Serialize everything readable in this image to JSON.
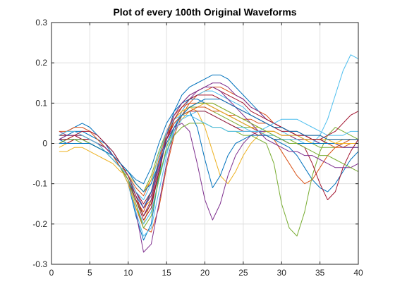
{
  "chart_data": {
    "type": "line",
    "title": "Plot of every 100th Original Waveforms",
    "xlabel": "",
    "ylabel": "",
    "xlim": [
      0,
      40
    ],
    "ylim": [
      -0.3,
      0.3
    ],
    "x_ticks": [
      0,
      5,
      10,
      15,
      20,
      25,
      30,
      35,
      40
    ],
    "y_ticks": [
      -0.3,
      -0.2,
      -0.1,
      0,
      0.1,
      0.2,
      0.3
    ],
    "grid": true,
    "x": [
      1,
      2,
      3,
      4,
      5,
      6,
      7,
      8,
      9,
      10,
      11,
      12,
      13,
      14,
      15,
      16,
      17,
      18,
      19,
      20,
      21,
      22,
      23,
      24,
      25,
      26,
      27,
      28,
      29,
      30,
      31,
      32,
      33,
      34,
      35,
      36,
      37,
      38,
      39,
      40
    ],
    "series_colors": [
      "#0072bd",
      "#d95319",
      "#edb120",
      "#7e2f8e",
      "#77ac30",
      "#4dbeee",
      "#a2142f"
    ],
    "series": [
      {
        "values": [
          0.02,
          0.03,
          0.04,
          0.05,
          0.04,
          0.02,
          0.0,
          -0.03,
          -0.06,
          -0.1,
          -0.18,
          -0.24,
          -0.2,
          -0.08,
          0.02,
          0.08,
          0.12,
          0.14,
          0.15,
          0.16,
          0.17,
          0.17,
          0.16,
          0.14,
          0.12,
          0.1,
          0.08,
          0.06,
          0.05,
          0.04,
          0.03,
          0.02,
          0.02,
          0.01,
          0.01,
          0.0,
          0.0,
          -0.01,
          -0.01,
          -0.01
        ]
      },
      {
        "values": [
          0.01,
          0.01,
          0.02,
          0.02,
          0.01,
          0.0,
          -0.02,
          -0.04,
          -0.06,
          -0.1,
          -0.16,
          -0.21,
          -0.22,
          -0.16,
          -0.06,
          0.02,
          0.07,
          0.1,
          0.12,
          0.13,
          0.14,
          0.14,
          0.13,
          0.12,
          0.11,
          0.09,
          0.08,
          0.07,
          0.05,
          0.04,
          0.03,
          0.02,
          0.01,
          0.01,
          0.0,
          0.0,
          -0.01,
          -0.01,
          0.0,
          0.0
        ]
      },
      {
        "values": [
          -0.01,
          0.0,
          0.01,
          0.01,
          0.0,
          -0.01,
          -0.02,
          -0.04,
          -0.06,
          -0.08,
          -0.12,
          -0.16,
          -0.14,
          -0.08,
          -0.02,
          0.03,
          0.06,
          0.08,
          0.09,
          0.1,
          0.1,
          0.09,
          0.08,
          0.07,
          0.06,
          0.05,
          0.04,
          0.03,
          0.03,
          0.02,
          0.02,
          0.01,
          0.01,
          0.0,
          0.0,
          0.0,
          0.0,
          0.01,
          0.01,
          0.01
        ]
      },
      {
        "values": [
          0.03,
          0.02,
          0.02,
          0.01,
          0.01,
          0.0,
          -0.01,
          -0.03,
          -0.06,
          -0.09,
          -0.17,
          -0.27,
          -0.25,
          -0.15,
          -0.05,
          0.03,
          0.08,
          0.11,
          0.13,
          0.14,
          0.15,
          0.15,
          0.14,
          0.12,
          0.11,
          0.09,
          0.08,
          0.06,
          0.05,
          0.04,
          0.03,
          0.03,
          0.02,
          0.01,
          0.01,
          0.0,
          0.0,
          -0.01,
          -0.01,
          -0.01
        ]
      },
      {
        "values": [
          0.0,
          0.01,
          0.01,
          0.0,
          0.0,
          -0.01,
          -0.02,
          -0.04,
          -0.06,
          -0.07,
          -0.1,
          -0.12,
          -0.08,
          -0.02,
          0.03,
          0.06,
          0.08,
          0.09,
          0.09,
          0.09,
          0.08,
          0.07,
          0.06,
          0.05,
          0.04,
          0.04,
          0.03,
          0.02,
          0.02,
          0.01,
          0.01,
          0.0,
          0.0,
          0.0,
          -0.01,
          -0.01,
          -0.01,
          0.0,
          0.0,
          0.0
        ]
      },
      {
        "values": [
          0.02,
          0.02,
          0.03,
          0.03,
          0.02,
          0.01,
          -0.01,
          -0.03,
          -0.06,
          -0.1,
          -0.17,
          -0.23,
          -0.21,
          -0.12,
          -0.03,
          0.04,
          0.08,
          0.11,
          0.12,
          0.13,
          0.13,
          0.12,
          0.11,
          0.1,
          0.09,
          0.07,
          0.06,
          0.05,
          0.04,
          0.03,
          0.02,
          0.02,
          0.01,
          0.01,
          0.0,
          0.0,
          0.0,
          0.0,
          0.0,
          0.0
        ]
      },
      {
        "values": [
          0.0,
          0.0,
          0.01,
          0.01,
          0.01,
          0.0,
          -0.01,
          -0.03,
          -0.05,
          -0.08,
          -0.12,
          -0.15,
          -0.12,
          -0.05,
          0.02,
          0.07,
          0.1,
          0.12,
          0.13,
          0.14,
          0.14,
          0.13,
          0.12,
          0.11,
          0.1,
          0.08,
          0.07,
          0.06,
          0.05,
          0.04,
          0.03,
          0.02,
          0.02,
          0.01,
          0.01,
          0.0,
          0.0,
          0.0,
          0.0,
          0.0
        ]
      },
      {
        "values": [
          0.01,
          0.02,
          0.03,
          0.03,
          0.02,
          0.01,
          0.0,
          -0.02,
          -0.05,
          -0.07,
          -0.09,
          -0.1,
          -0.06,
          0.0,
          0.05,
          0.08,
          0.1,
          0.11,
          0.11,
          0.1,
          0.09,
          0.08,
          0.07,
          0.06,
          0.05,
          0.04,
          0.03,
          0.02,
          0.01,
          0.0,
          -0.01,
          -0.03,
          -0.06,
          -0.09,
          -0.11,
          -0.12,
          -0.1,
          -0.07,
          -0.04,
          -0.02
        ]
      },
      {
        "values": [
          0.02,
          0.03,
          0.03,
          0.02,
          0.01,
          0.0,
          -0.01,
          -0.03,
          -0.06,
          -0.09,
          -0.14,
          -0.17,
          -0.12,
          -0.04,
          0.03,
          0.07,
          0.09,
          0.1,
          0.1,
          0.1,
          0.09,
          0.08,
          0.07,
          0.06,
          0.05,
          0.04,
          0.03,
          0.02,
          0.01,
          -0.02,
          -0.05,
          -0.08,
          -0.1,
          -0.09,
          -0.06,
          -0.03,
          -0.01,
          0.0,
          0.01,
          0.01
        ]
      },
      {
        "values": [
          0.01,
          0.01,
          0.02,
          0.02,
          0.01,
          0.0,
          -0.02,
          -0.04,
          -0.06,
          -0.1,
          -0.16,
          -0.2,
          -0.14,
          -0.05,
          0.02,
          0.06,
          0.08,
          0.09,
          0.08,
          0.04,
          -0.02,
          -0.08,
          -0.1,
          -0.07,
          -0.03,
          0.0,
          0.02,
          0.03,
          0.03,
          0.02,
          0.02,
          0.01,
          0.01,
          0.0,
          0.0,
          0.0,
          0.0,
          0.0,
          0.0,
          0.0
        ]
      },
      {
        "values": [
          0.0,
          0.01,
          0.01,
          0.01,
          0.0,
          -0.01,
          -0.02,
          -0.04,
          -0.06,
          -0.09,
          -0.14,
          -0.18,
          -0.14,
          -0.06,
          0.01,
          0.04,
          0.05,
          0.03,
          -0.05,
          -0.14,
          -0.19,
          -0.15,
          -0.08,
          -0.03,
          0.0,
          0.02,
          0.03,
          0.03,
          0.03,
          0.02,
          0.02,
          0.01,
          0.01,
          0.01,
          0.0,
          0.0,
          0.0,
          0.0,
          0.0,
          0.0
        ]
      },
      {
        "values": [
          0.02,
          0.02,
          0.02,
          0.02,
          0.01,
          0.0,
          -0.01,
          -0.03,
          -0.06,
          -0.09,
          -0.14,
          -0.18,
          -0.15,
          -0.08,
          -0.02,
          0.02,
          0.04,
          0.05,
          0.05,
          0.05,
          0.04,
          0.04,
          0.03,
          0.03,
          0.02,
          0.02,
          0.01,
          0.0,
          -0.05,
          -0.15,
          -0.21,
          -0.23,
          -0.17,
          -0.08,
          -0.02,
          0.02,
          0.04,
          0.03,
          0.02,
          0.01
        ]
      },
      {
        "values": [
          0.01,
          0.01,
          0.01,
          0.01,
          0.0,
          -0.01,
          -0.02,
          -0.03,
          -0.06,
          -0.09,
          -0.15,
          -0.2,
          -0.17,
          -0.09,
          -0.02,
          0.03,
          0.06,
          0.07,
          0.08,
          0.08,
          0.07,
          0.06,
          0.05,
          0.04,
          0.04,
          0.03,
          0.03,
          0.02,
          0.02,
          0.01,
          0.01,
          0.01,
          0.0,
          0.0,
          0.02,
          0.06,
          0.12,
          0.18,
          0.22,
          0.21
        ]
      },
      {
        "values": [
          0.02,
          0.02,
          0.02,
          0.01,
          0.01,
          0.0,
          -0.01,
          -0.03,
          -0.06,
          -0.09,
          -0.14,
          -0.19,
          -0.16,
          -0.07,
          0.01,
          0.05,
          0.07,
          0.08,
          0.08,
          0.08,
          0.07,
          0.06,
          0.05,
          0.04,
          0.03,
          0.03,
          0.02,
          0.02,
          0.01,
          0.01,
          0.0,
          0.0,
          -0.01,
          -0.05,
          -0.1,
          -0.14,
          -0.12,
          -0.06,
          -0.02,
          0.01
        ]
      },
      {
        "values": [
          0.01,
          0.0,
          0.0,
          0.0,
          0.0,
          -0.01,
          -0.02,
          -0.04,
          -0.06,
          -0.09,
          -0.13,
          -0.16,
          -0.12,
          -0.05,
          0.02,
          0.05,
          0.07,
          0.08,
          0.04,
          -0.04,
          -0.11,
          -0.08,
          -0.03,
          0.0,
          0.01,
          0.02,
          0.02,
          0.02,
          0.01,
          0.01,
          0.0,
          0.0,
          0.0,
          0.0,
          0.0,
          0.0,
          0.0,
          0.0,
          0.0,
          0.0
        ]
      },
      {
        "values": [
          0.03,
          0.03,
          0.04,
          0.04,
          0.03,
          0.01,
          -0.01,
          -0.03,
          -0.06,
          -0.08,
          -0.11,
          -0.13,
          -0.09,
          -0.03,
          0.02,
          0.05,
          0.07,
          0.08,
          0.09,
          0.09,
          0.08,
          0.08,
          0.07,
          0.07,
          0.06,
          0.06,
          0.05,
          0.05,
          0.04,
          0.04,
          0.03,
          0.03,
          0.02,
          0.02,
          0.02,
          0.01,
          0.01,
          0.01,
          0.01,
          0.01
        ]
      },
      {
        "values": [
          -0.02,
          -0.02,
          -0.01,
          -0.01,
          -0.02,
          -0.03,
          -0.04,
          -0.05,
          -0.07,
          -0.08,
          -0.1,
          -0.12,
          -0.09,
          -0.03,
          0.02,
          0.06,
          0.08,
          0.09,
          0.1,
          0.1,
          0.09,
          0.08,
          0.07,
          0.06,
          0.05,
          0.04,
          0.04,
          0.03,
          0.03,
          0.02,
          0.02,
          0.02,
          0.01,
          0.01,
          0.01,
          0.01,
          0.0,
          0.0,
          0.0,
          0.0
        ]
      },
      {
        "values": [
          0.01,
          0.02,
          0.02,
          0.02,
          0.01,
          0.0,
          -0.01,
          -0.03,
          -0.05,
          -0.08,
          -0.12,
          -0.16,
          -0.13,
          -0.05,
          0.02,
          0.07,
          0.1,
          0.12,
          0.13,
          0.14,
          0.14,
          0.13,
          0.11,
          0.09,
          0.07,
          0.05,
          0.03,
          0.01,
          0.0,
          -0.01,
          -0.02,
          -0.02,
          -0.03,
          -0.03,
          -0.04,
          -0.05,
          -0.06,
          -0.06,
          -0.06,
          -0.05
        ]
      },
      {
        "values": [
          0.0,
          0.01,
          0.01,
          0.01,
          0.0,
          -0.01,
          -0.02,
          -0.04,
          -0.06,
          -0.09,
          -0.15,
          -0.21,
          -0.18,
          -0.09,
          -0.01,
          0.04,
          0.07,
          0.09,
          0.1,
          0.1,
          0.1,
          0.09,
          0.08,
          0.07,
          0.06,
          0.05,
          0.04,
          0.03,
          0.02,
          0.01,
          0.0,
          0.0,
          -0.01,
          -0.02,
          -0.03,
          -0.03,
          -0.04,
          -0.05,
          -0.06,
          -0.07
        ]
      },
      {
        "values": [
          0.02,
          0.03,
          0.03,
          0.02,
          0.01,
          0.0,
          -0.02,
          -0.04,
          -0.06,
          -0.08,
          -0.12,
          -0.14,
          -0.1,
          -0.03,
          0.03,
          0.06,
          0.07,
          0.07,
          0.06,
          0.05,
          0.04,
          0.04,
          0.03,
          0.03,
          0.03,
          0.03,
          0.03,
          0.04,
          0.05,
          0.06,
          0.06,
          0.06,
          0.05,
          0.04,
          0.03,
          0.02,
          0.02,
          0.02,
          0.03,
          0.03
        ]
      },
      {
        "values": [
          0.01,
          0.01,
          0.02,
          0.03,
          0.03,
          0.02,
          0.0,
          -0.02,
          -0.05,
          -0.08,
          -0.13,
          -0.18,
          -0.15,
          -0.07,
          0.01,
          0.06,
          0.09,
          0.11,
          0.12,
          0.12,
          0.12,
          0.11,
          0.1,
          0.09,
          0.08,
          0.07,
          0.06,
          0.05,
          0.04,
          0.03,
          0.03,
          0.02,
          0.02,
          0.01,
          0.01,
          0.02,
          0.03,
          0.05,
          0.07,
          0.08
        ]
      },
      {
        "values": [
          0.0,
          0.0,
          0.0,
          0.0,
          0.0,
          -0.01,
          -0.02,
          -0.03,
          -0.05,
          -0.07,
          -0.1,
          -0.12,
          -0.1,
          -0.05,
          0.0,
          0.04,
          0.07,
          0.09,
          0.1,
          0.11,
          0.11,
          0.11,
          0.1,
          0.09,
          0.08,
          0.07,
          0.06,
          0.05,
          0.04,
          0.04,
          0.03,
          0.03,
          0.02,
          0.02,
          0.02,
          0.01,
          0.01,
          0.01,
          0.01,
          0.01
        ]
      }
    ]
  }
}
